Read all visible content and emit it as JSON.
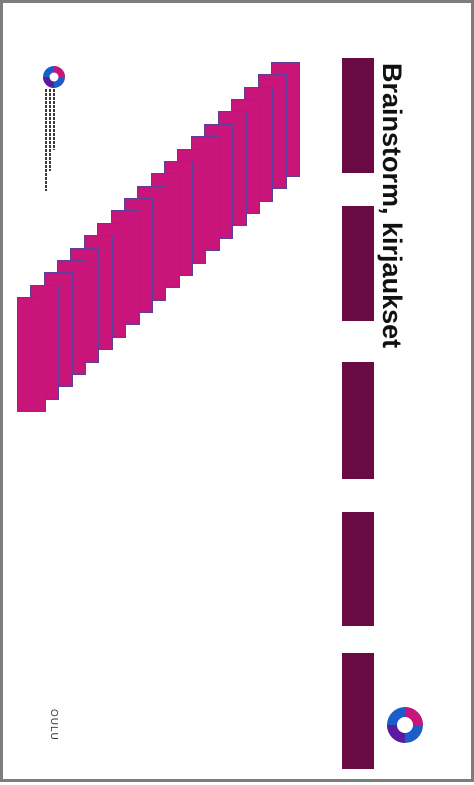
{
  "slide": {
    "title": "Brainstorm, kirjaukset",
    "footer": "OULU",
    "placeholder_bars": [
      {
        "label": "placeholder-1"
      },
      {
        "label": "placeholder-2"
      },
      {
        "label": "placeholder-3"
      },
      {
        "label": "placeholder-4"
      },
      {
        "label": "placeholder-5"
      }
    ],
    "card_count": 20
  },
  "logos": {
    "small": "university-logo-icon",
    "large": "university-logo-large-icon"
  },
  "colors": {
    "bar": "#6a0a45",
    "card_fill": "#c9147a",
    "card_border": "#5b3f9a",
    "frame": "#7d7d7d",
    "logo_purple": "#5b1aa0",
    "logo_magenta": "#c9147a",
    "logo_blue": "#1a5fc9"
  }
}
